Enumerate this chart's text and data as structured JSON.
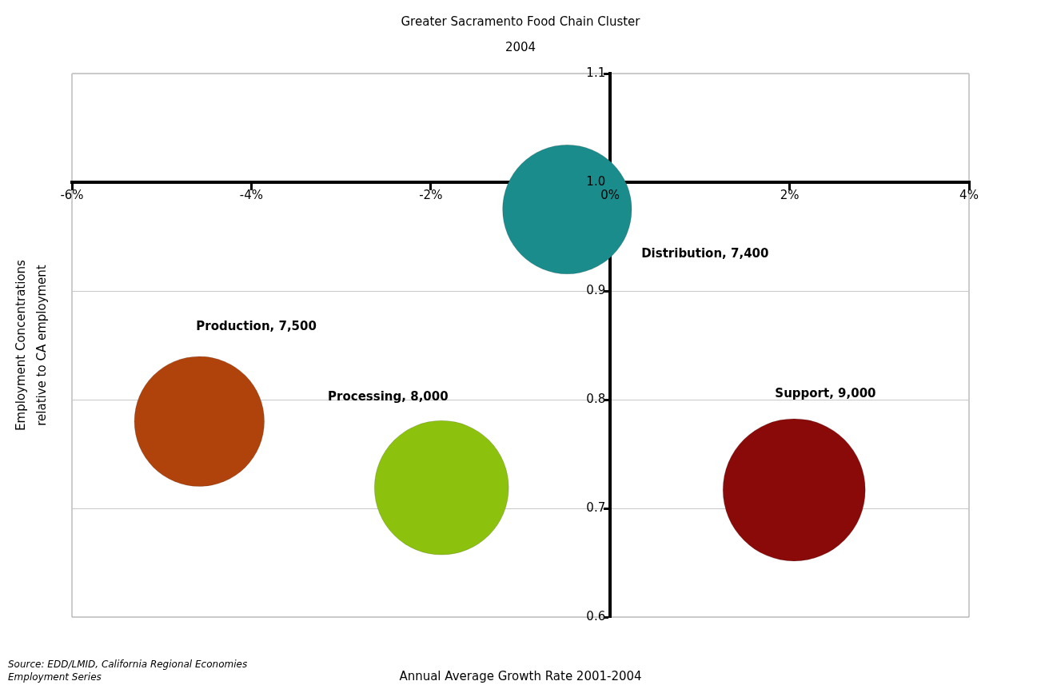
{
  "chart_data": {
    "type": "bubble",
    "title": "Greater Sacramento Food Chain Cluster",
    "subtitle": "2004",
    "xlabel": "Annual Average Growth Rate 2001-2004",
    "ylabel": "Employment Concentrations\nrelative to CA employment",
    "annotations": [
      "Source: EDD/LMID, California Regional Economies Employment Series"
    ],
    "xlim": [
      -6,
      4
    ],
    "xticks": [
      {
        "value": -6,
        "label": "-6%"
      },
      {
        "value": -4,
        "label": "-4%"
      },
      {
        "value": -2,
        "label": "-2%"
      },
      {
        "value": 0,
        "label": "0%"
      },
      {
        "value": 2,
        "label": "2%"
      },
      {
        "value": 4,
        "label": "4%"
      }
    ],
    "ylim": [
      0.6,
      1.1
    ],
    "yticks": [
      0.6,
      0.7,
      0.8,
      0.9,
      {
        "value": 1,
        "label": "1.0"
      },
      1.1
    ],
    "grid": "y",
    "legend": false,
    "series": [
      {
        "color": "#1a8c8c",
        "x": [
          -0.48
        ],
        "values": [
          0.975
        ],
        "sizes": [
          7400
        ],
        "value_labels": [
          "Distribution, 7,400"
        ]
      },
      {
        "color": "#b0420c",
        "x": [
          -4.58
        ],
        "values": [
          0.78
        ],
        "sizes": [
          7500
        ],
        "value_labels": [
          "Production, 7,500"
        ]
      },
      {
        "color": "#8cc20e",
        "x": [
          -1.88
        ],
        "values": [
          0.719
        ],
        "sizes": [
          8000
        ],
        "value_labels": [
          "Processing, 8,000"
        ]
      },
      {
        "color": "#8a0a0a",
        "x": [
          2.05
        ],
        "values": [
          0.717
        ],
        "sizes": [
          9000
        ],
        "value_labels": [
          "Support, 9,000"
        ]
      }
    ]
  }
}
